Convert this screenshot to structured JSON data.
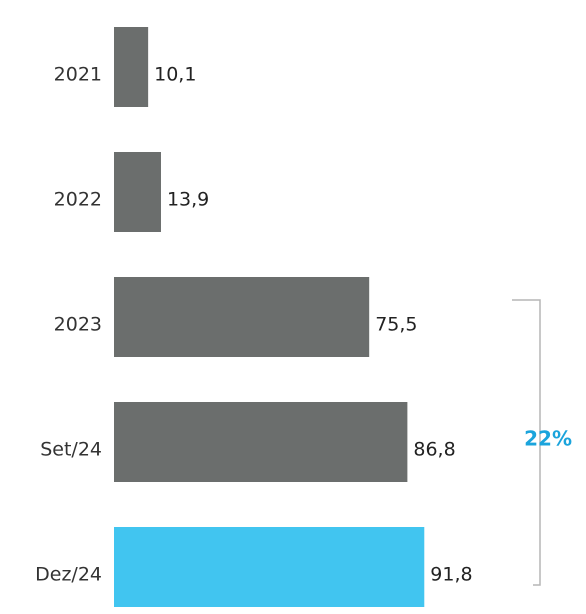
{
  "chart_data": {
    "type": "hbar",
    "categories": [
      "2021",
      "2022",
      "2023",
      "Set/24",
      "Dez/24"
    ],
    "values": [
      10.1,
      13.9,
      75.5,
      86.8,
      91.8
    ],
    "value_labels": [
      "10,1",
      "13,9",
      "75,5",
      "86,8",
      "91,8"
    ],
    "colors": [
      "#6b6e6d",
      "#6b6e6d",
      "#6b6e6d",
      "#6b6e6d",
      "#41c5f0"
    ],
    "xlim": [
      0,
      100
    ],
    "grid": false,
    "annotation": {
      "text": "22%",
      "color": "#1ba4dc"
    }
  }
}
